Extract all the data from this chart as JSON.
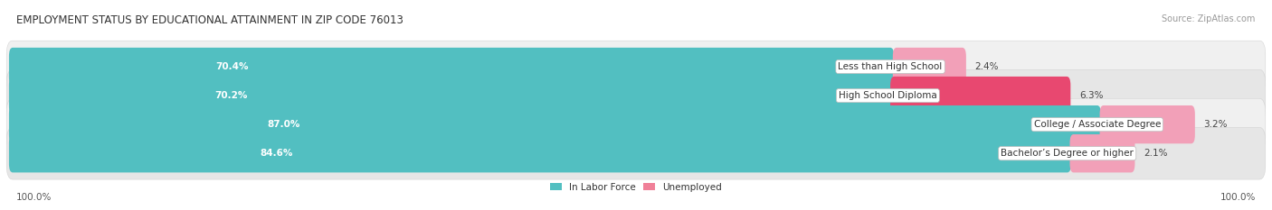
{
  "title": "EMPLOYMENT STATUS BY EDUCATIONAL ATTAINMENT IN ZIP CODE 76013",
  "source": "Source: ZipAtlas.com",
  "categories": [
    "Less than High School",
    "High School Diploma",
    "College / Associate Degree",
    "Bachelor’s Degree or higher"
  ],
  "in_labor_force": [
    70.4,
    70.2,
    87.0,
    84.6
  ],
  "unemployed": [
    2.4,
    6.3,
    3.2,
    2.1
  ],
  "labor_force_color": "#52BFC1",
  "unemployed_color_1": "#F08098",
  "unemployed_color_2": "#E8405A",
  "unemployed_colors": [
    "#F2A0B8",
    "#E84870",
    "#F2A0B8",
    "#F2A0B8"
  ],
  "bar_bg_color": "#E0E0E0",
  "row_bg_colors": [
    "#F0F0F0",
    "#E6E6E6",
    "#F0F0F0",
    "#E6E6E6"
  ],
  "title_fontsize": 8.5,
  "source_fontsize": 7.0,
  "label_fontsize": 7.5,
  "bar_label_fontsize": 7.5,
  "axis_label_fontsize": 7.5,
  "legend_fontsize": 7.5,
  "x_left_label": "100.0%",
  "x_right_label": "100.0%",
  "background_color": "#FFFFFF"
}
